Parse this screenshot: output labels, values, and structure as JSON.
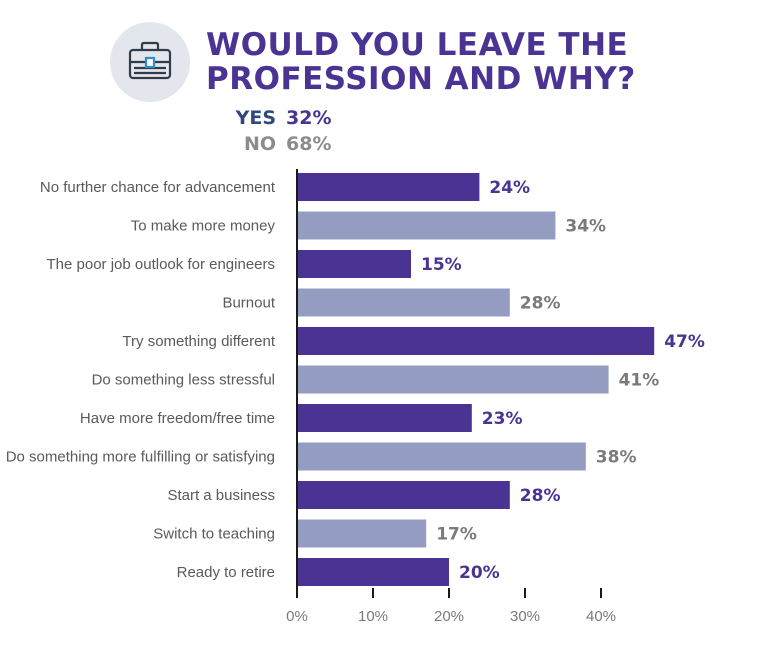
{
  "header": {
    "title_line1": "WOULD YOU LEAVE THE",
    "title_line2": "PROFESSION AND WHY?",
    "icon": "briefcase-icon"
  },
  "summary": {
    "yes_label": "YES",
    "yes_value": "32%",
    "no_label": "NO",
    "no_value": "68%",
    "yes_color": "#2e4a7d",
    "no_color": "#8c8c8c",
    "value_color": "#4a3392"
  },
  "colors": {
    "bar_dark": "#4a3392",
    "bar_light": "#949cc2",
    "label_dark": "#4a3392",
    "label_light": "#7a7a7a",
    "icon_bg": "#e3e6ec",
    "icon_stroke": "#333a48",
    "icon_accent": "#2f8fc9"
  },
  "chart_data": {
    "type": "bar",
    "orientation": "horizontal",
    "categories": [
      "No further chance for advancement",
      "To make more money",
      "The poor job outlook for engineers",
      "Burnout",
      "Try something different",
      "Do something less stressful",
      "Have more freedom/free time",
      "Do something more fulfilling or satisfying",
      "Start a business",
      "Switch to teaching",
      "Ready to retire"
    ],
    "values": [
      24,
      34,
      15,
      28,
      47,
      41,
      23,
      38,
      28,
      17,
      20
    ],
    "value_labels": [
      "24%",
      "34%",
      "15%",
      "28%",
      "47%",
      "41%",
      "23%",
      "38%",
      "28%",
      "17%",
      "20%"
    ],
    "xlim": [
      0,
      40
    ],
    "xticks": [
      0,
      10,
      20,
      30,
      40
    ],
    "xtick_labels": [
      "0%",
      "10%",
      "20%",
      "30%",
      "40%"
    ],
    "grid": false,
    "bar_color_pattern": "alternating"
  }
}
